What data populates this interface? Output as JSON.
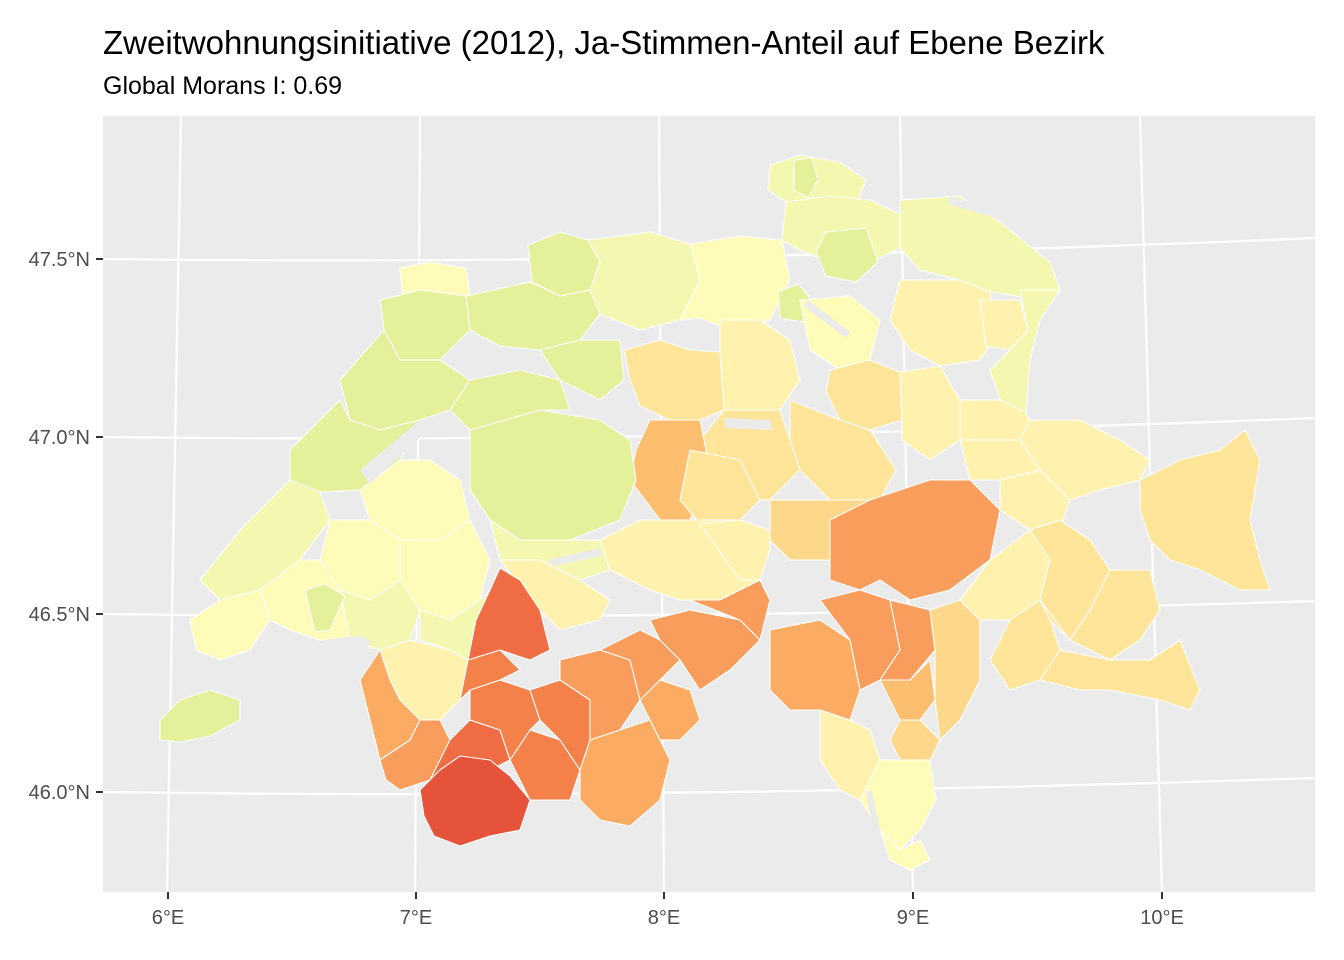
{
  "title": "Zweitwohnungsinitiative (2012), Ja-Stimmen-Anteil auf Ebene Bezirk",
  "subtitle": "Global Morans I:  0.69",
  "axes": {
    "lat_labels": [
      "47.5°N",
      "47.0°N",
      "46.5°N",
      "46.0°N"
    ],
    "lon_labels": [
      "6°E",
      "7°E",
      "8°E",
      "9°E",
      "10°E"
    ]
  },
  "colors": {
    "panel_bg": "#ebebeb",
    "grid": "#ffffff",
    "border": "#ffffff",
    "scale": [
      "#e4f09a",
      "#f4f7b0",
      "#fffbb8",
      "#fff1ae",
      "#fee59a",
      "#fed88a",
      "#fdbf6f",
      "#fcac62",
      "#f99d5c",
      "#f4804a",
      "#ef6c45",
      "#e5533a"
    ]
  },
  "chart_data": {
    "type": "choropleth",
    "title": "Zweitwohnungsinitiative (2012), Ja-Stimmen-Anteil auf Ebene Bezirk",
    "subtitle": "Global Morans I:  0.69",
    "x_ticks": [
      "6°E",
      "7°E",
      "8°E",
      "9°E",
      "10°E"
    ],
    "y_ticks": [
      "47.5°N",
      "47.0°N",
      "46.5°N",
      "46.0°N"
    ],
    "grid": true,
    "legend": "none",
    "morans_i": 0.69
  }
}
